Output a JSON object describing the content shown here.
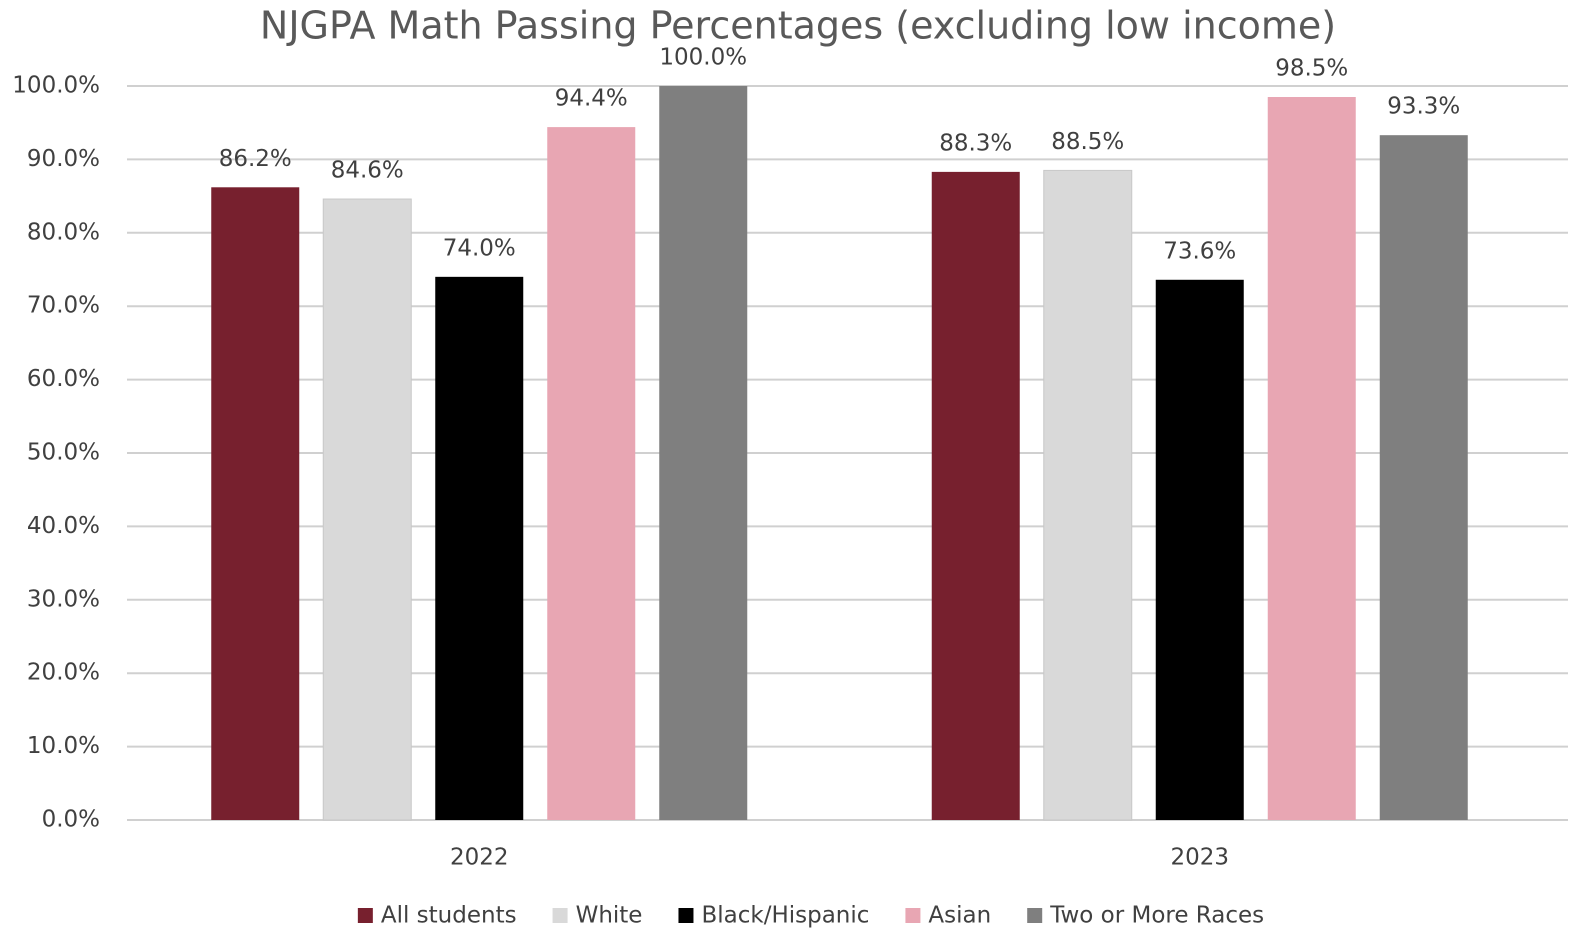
{
  "chart_data": {
    "type": "bar",
    "title": "NJGPA Math Passing Percentages (excluding low income)",
    "categories": [
      "2022",
      "2023"
    ],
    "series": [
      {
        "name": "All students",
        "color": "#77202e",
        "values": [
          86.2,
          88.3
        ],
        "value_labels": [
          "86.2%",
          "88.3%"
        ]
      },
      {
        "name": "White",
        "color": "#d9d9d9",
        "values": [
          84.6,
          88.5
        ],
        "value_labels": [
          "84.6%",
          "88.5%"
        ]
      },
      {
        "name": "Black/Hispanic",
        "color": "#000000",
        "values": [
          74.0,
          73.6
        ],
        "value_labels": [
          "74.0%",
          "73.6%"
        ]
      },
      {
        "name": "Asian",
        "color": "#e8a6b3",
        "values": [
          94.4,
          98.5
        ],
        "value_labels": [
          "94.4%",
          "98.5%"
        ]
      },
      {
        "name": "Two or More Races",
        "color": "#7f7f7f",
        "values": [
          100.0,
          93.3
        ],
        "value_labels": [
          "100.0%",
          "93.3%"
        ]
      }
    ],
    "ylim": [
      0,
      100
    ],
    "yticks": [
      {
        "value": 0,
        "label": "0.0%"
      },
      {
        "value": 10,
        "label": "10.0%"
      },
      {
        "value": 20,
        "label": "20.0%"
      },
      {
        "value": 30,
        "label": "30.0%"
      },
      {
        "value": 40,
        "label": "40.0%"
      },
      {
        "value": 50,
        "label": "50.0%"
      },
      {
        "value": 60,
        "label": "60.0%"
      },
      {
        "value": 70,
        "label": "70.0%"
      },
      {
        "value": 80,
        "label": "80.0%"
      },
      {
        "value": 90,
        "label": "90.0%"
      },
      {
        "value": 100,
        "label": "100.0%"
      }
    ],
    "grid": true,
    "legend": "bottom"
  }
}
